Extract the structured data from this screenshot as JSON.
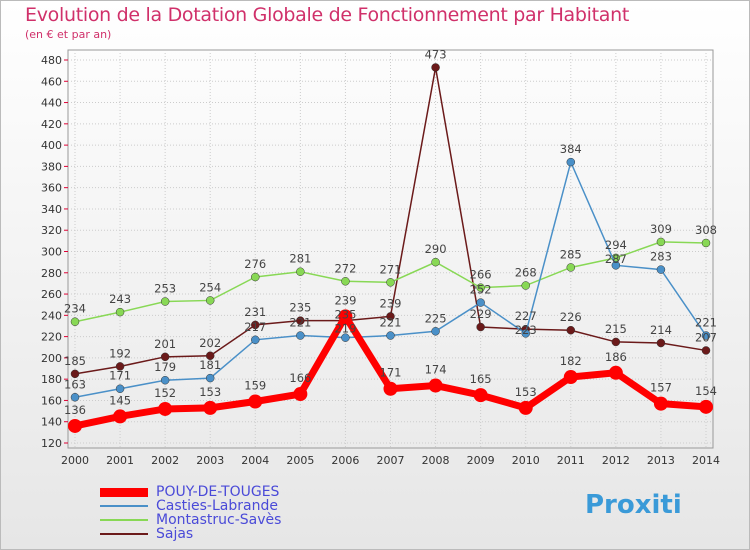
{
  "chart_data": {
    "type": "line",
    "title": "Evolution de la Dotation Globale de Fonctionnement par Habitant",
    "subtitle": "(en € et par an)",
    "x": [
      "2000",
      "2001",
      "2002",
      "2003",
      "2004",
      "2005",
      "2006",
      "2007",
      "2008",
      "2009",
      "2010",
      "2011",
      "2012",
      "2013",
      "2014"
    ],
    "yticks": [
      120,
      140,
      160,
      180,
      200,
      220,
      240,
      260,
      280,
      300,
      320,
      340,
      360,
      380,
      400,
      420,
      440,
      460,
      480
    ],
    "ylim": [
      120,
      480
    ],
    "grid": true,
    "legend_position": "bottom-left",
    "series": [
      {
        "name": "POUY-DE-TOUGES",
        "color": "#ff0000",
        "values": [
          136,
          145,
          152,
          153,
          159,
          166,
          239,
          171,
          174,
          165,
          153,
          182,
          186,
          157,
          154
        ]
      },
      {
        "name": "Casties-Labrande",
        "color": "#4a90c8",
        "values": [
          163,
          171,
          179,
          181,
          217,
          221,
          219,
          221,
          225,
          252,
          223,
          384,
          287,
          283,
          221
        ]
      },
      {
        "name": "Montastruc-Savès",
        "color": "#88d855",
        "values": [
          234,
          243,
          253,
          254,
          276,
          281,
          272,
          271,
          290,
          266,
          268,
          285,
          294,
          309,
          308
        ]
      },
      {
        "name": "Sajas",
        "color": "#6b1a1a",
        "values": [
          185,
          192,
          201,
          202,
          231,
          235,
          235,
          239,
          473,
          229,
          227,
          226,
          215,
          214,
          207
        ]
      }
    ]
  },
  "logo": "Proxiti"
}
